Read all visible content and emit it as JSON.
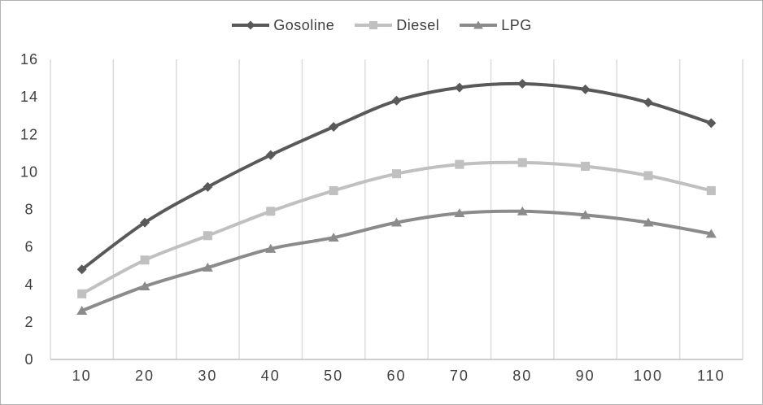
{
  "window": {
    "background": "#ffffff",
    "border_color": "#b3b3b3"
  },
  "chart_data": {
    "type": "line",
    "title": "",
    "categories": [
      10,
      20,
      30,
      40,
      50,
      60,
      70,
      80,
      90,
      100,
      110
    ],
    "x_tick_labels": [
      "10",
      "20",
      "30",
      "40",
      "50",
      "60",
      "70",
      "80",
      "90",
      "100",
      "110"
    ],
    "series": [
      {
        "name": "Gosoline",
        "marker": "diamond",
        "color": "#595959",
        "values": [
          4.8,
          7.3,
          9.2,
          10.9,
          12.4,
          13.8,
          14.5,
          14.7,
          14.4,
          13.7,
          12.6
        ]
      },
      {
        "name": "Diesel",
        "marker": "square",
        "color": "#c0c0c0",
        "values": [
          3.5,
          5.3,
          6.6,
          7.9,
          9.0,
          9.9,
          10.4,
          10.5,
          10.3,
          9.8,
          9.0
        ]
      },
      {
        "name": "LPG",
        "marker": "triangle",
        "color": "#8b8b8b",
        "values": [
          2.6,
          3.9,
          4.9,
          5.9,
          6.5,
          7.3,
          7.8,
          7.9,
          7.7,
          7.3,
          6.7
        ]
      }
    ],
    "y_axis": {
      "min": 0,
      "max": 16,
      "step": 2,
      "tick_labels": [
        "0",
        "2",
        "4",
        "6",
        "8",
        "10",
        "12",
        "14",
        "16"
      ]
    },
    "xlabel": "",
    "ylabel": "",
    "legend_position": "top",
    "smooth_lines": true,
    "grid": {
      "vertical": true,
      "horizontal": false,
      "color": "#d9d9d9"
    },
    "axis_line_color": "#bfbfbf",
    "text_color": "#404040"
  }
}
